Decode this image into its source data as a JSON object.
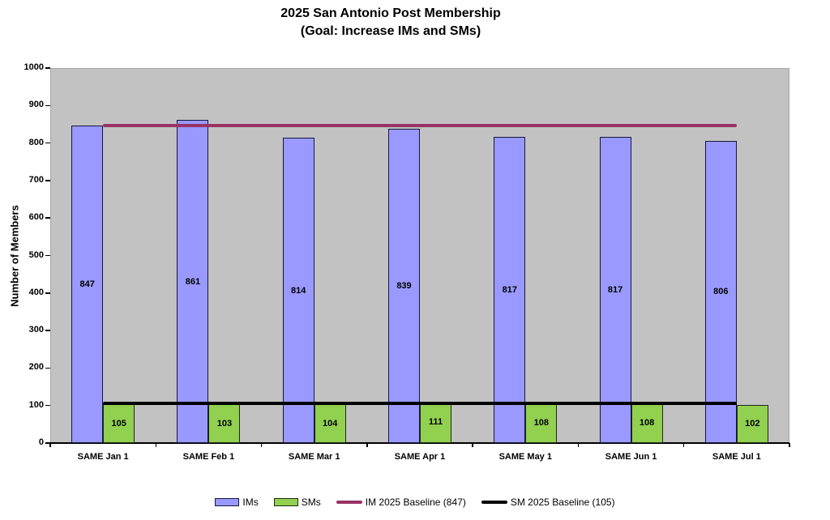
{
  "chart_data": {
    "type": "bar",
    "title": "2025 San Antonio Post Membership",
    "subtitle": "(Goal: Increase IMs and SMs)",
    "xlabel": "",
    "ylabel": "Number of Members",
    "ylim": [
      0,
      1000
    ],
    "ytick_step": 100,
    "yticks": [
      0,
      100,
      200,
      300,
      400,
      500,
      600,
      700,
      800,
      900,
      1000
    ],
    "grid": false,
    "plot_background": "#c2c2c2",
    "legend_position": "bottom",
    "categories": [
      "SAME Jan 1",
      "SAME Feb 1",
      "SAME Mar 1",
      "SAME Apr 1",
      "SAME May 1",
      "SAME Jun 1",
      "SAME Jul 1"
    ],
    "series": [
      {
        "name": "IMs",
        "type": "bar",
        "color": "#9999ff",
        "border_color": "#16163f",
        "values": [
          847,
          861,
          814,
          839,
          817,
          817,
          806
        ]
      },
      {
        "name": "SMs",
        "type": "bar",
        "color": "#92d050",
        "border_color": "#1e2a14",
        "values": [
          105,
          103,
          104,
          111,
          108,
          108,
          102
        ]
      },
      {
        "name": "IM 2025 Baseline (847)",
        "type": "line",
        "color": "#993366",
        "value": 847
      },
      {
        "name": "SM 2025 Baseline (105)",
        "type": "line",
        "color": "#000000",
        "value": 105
      }
    ]
  }
}
